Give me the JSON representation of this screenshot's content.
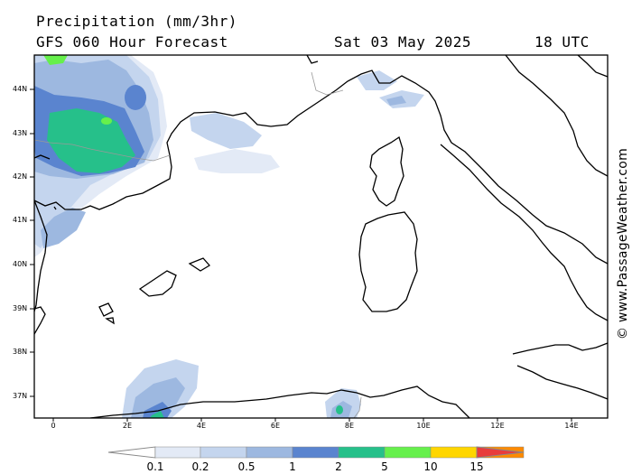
{
  "header": {
    "title": "Precipitation (mm/3hr)",
    "model": "GFS 060 Hour Forecast",
    "date": "Sat 03 May 2025",
    "time": "18 UTC"
  },
  "credit": "© www.PassageWeather.com",
  "axes": {
    "lat_labels": [
      "44N",
      "43N",
      "42N",
      "41N",
      "40N",
      "39N",
      "38N",
      "37N"
    ],
    "lon_labels": [
      "0",
      "2E",
      "4E",
      "6E",
      "8E",
      "10E",
      "12E",
      "14E"
    ]
  },
  "legend": {
    "labels": [
      "0.1",
      "0.2",
      "0.5",
      "1",
      "2",
      "5",
      "10",
      "15"
    ],
    "colors": [
      "#ffffff",
      "#e3eaf6",
      "#c4d5ee",
      "#9db8e0",
      "#5a84cf",
      "#26c08a",
      "#66f04c",
      "#ffd600",
      "#ff8a00",
      "#e83c3c"
    ]
  }
}
